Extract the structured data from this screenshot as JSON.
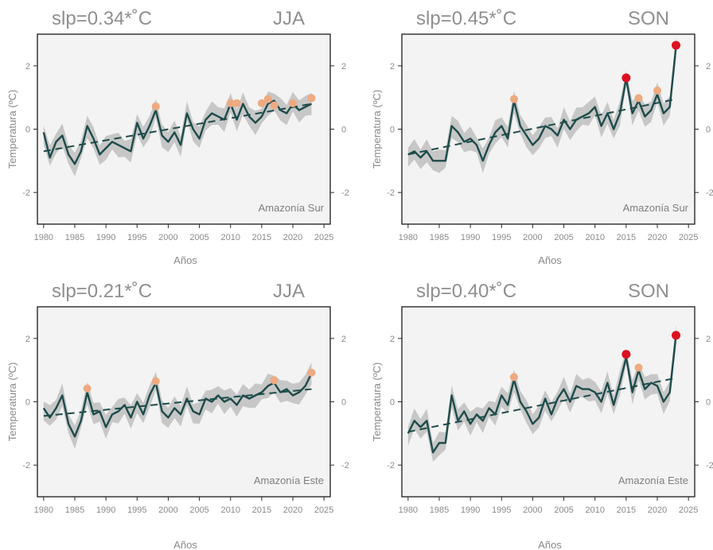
{
  "colors": {
    "line": "#1d4b4a",
    "band": "#c7c7c7",
    "trend": "#1d4b4a",
    "highlight_orange": "#eeaa80",
    "highlight_red": "#dd1020",
    "frame": "#2b2b2b",
    "background": "#f3f3f3"
  },
  "chart_data": [
    {
      "type": "line",
      "title": "slp=0.34*˚C",
      "season": "JJA",
      "region": "Amazonía Sur",
      "xlabel": "Años",
      "ylabel": "Temperatura (ºC)",
      "xlim": [
        1979,
        2026
      ],
      "ylim": [
        -3,
        3
      ],
      "xticks": [
        1980,
        1985,
        1990,
        1995,
        2000,
        2005,
        2010,
        2015,
        2020,
        2025
      ],
      "yticks": [
        -2,
        0,
        2
      ],
      "x": [
        1980,
        1981,
        1982,
        1983,
        1984,
        1985,
        1986,
        1987,
        1988,
        1989,
        1990,
        1991,
        1992,
        1993,
        1994,
        1995,
        1996,
        1997,
        1998,
        1999,
        2000,
        2001,
        2002,
        2003,
        2004,
        2005,
        2006,
        2007,
        2008,
        2009,
        2010,
        2011,
        2012,
        2013,
        2014,
        2015,
        2016,
        2017,
        2018,
        2019,
        2020,
        2021,
        2022,
        2023
      ],
      "series": [
        {
          "values": [
            -0.1,
            -0.9,
            -0.4,
            -0.2,
            -0.8,
            -1.1,
            -0.7,
            0.1,
            -0.3,
            -0.8,
            -0.6,
            -0.4,
            -0.5,
            -0.6,
            -0.7,
            0.2,
            -0.3,
            0.1,
            0.6,
            -0.2,
            -0.4,
            -0.1,
            -0.5,
            0.5,
            0.0,
            -0.3,
            0.3,
            0.5,
            0.4,
            0.3,
            0.8,
            0.3,
            0.8,
            0.4,
            0.2,
            0.4,
            0.8,
            0.9,
            0.6,
            0.5,
            0.8,
            0.6,
            0.7,
            0.8
          ]
        }
      ],
      "band_half_width": 0.3,
      "trend": {
        "start": [
          1980,
          -0.7
        ],
        "end": [
          2023,
          0.8
        ]
      },
      "highlights": [
        {
          "x": 1998,
          "y": 0.72,
          "color": "orange"
        },
        {
          "x": 2010,
          "y": 0.82,
          "color": "orange"
        },
        {
          "x": 2011,
          "y": 0.82,
          "color": "orange"
        },
        {
          "x": 2015,
          "y": 0.82,
          "color": "orange"
        },
        {
          "x": 2016,
          "y": 0.95,
          "color": "orange"
        },
        {
          "x": 2017,
          "y": 0.75,
          "color": "orange"
        },
        {
          "x": 2020,
          "y": 0.82,
          "color": "orange"
        },
        {
          "x": 2023,
          "y": 0.98,
          "color": "orange"
        }
      ]
    },
    {
      "type": "line",
      "title": "slp=0.45*˚C",
      "season": "SON",
      "region": "Amazonía Sur",
      "xlabel": "Años",
      "ylabel": "Temperatura (ºC)",
      "xlim": [
        1979,
        2026
      ],
      "ylim": [
        -3,
        3
      ],
      "xticks": [
        1980,
        1985,
        1990,
        1995,
        2000,
        2005,
        2010,
        2015,
        2020,
        2025
      ],
      "yticks": [
        -2,
        0,
        2
      ],
      "x": [
        1980,
        1981,
        1982,
        1983,
        1984,
        1985,
        1986,
        1987,
        1988,
        1989,
        1990,
        1991,
        1992,
        1993,
        1994,
        1995,
        1996,
        1997,
        1998,
        1999,
        2000,
        2001,
        2002,
        2003,
        2004,
        2005,
        2006,
        2007,
        2008,
        2009,
        2010,
        2011,
        2012,
        2013,
        2014,
        2015,
        2016,
        2017,
        2018,
        2019,
        2020,
        2021,
        2022,
        2023
      ],
      "series": [
        {
          "values": [
            -0.8,
            -0.7,
            -0.9,
            -0.7,
            -1.0,
            -1.0,
            -1.0,
            0.1,
            -0.1,
            -0.4,
            -0.3,
            -0.5,
            -1.0,
            -0.5,
            -0.1,
            0.1,
            -0.3,
            0.9,
            0.1,
            -0.2,
            -0.5,
            -0.3,
            0.1,
            0.0,
            -0.2,
            0.3,
            0.0,
            0.3,
            0.4,
            0.5,
            0.7,
            0.1,
            0.5,
            0.0,
            0.5,
            1.6,
            0.5,
            0.9,
            0.4,
            0.6,
            1.1,
            0.5,
            0.7,
            2.6
          ]
        }
      ],
      "band_half_width": 0.3,
      "trend": {
        "start": [
          1980,
          -0.8
        ],
        "end": [
          2023,
          0.95
        ]
      },
      "highlights": [
        {
          "x": 1997,
          "y": 0.95,
          "color": "orange"
        },
        {
          "x": 2017,
          "y": 0.98,
          "color": "orange"
        },
        {
          "x": 2020,
          "y": 1.22,
          "color": "orange"
        },
        {
          "x": 2015,
          "y": 1.62,
          "color": "red"
        },
        {
          "x": 2023,
          "y": 2.65,
          "color": "red"
        }
      ]
    },
    {
      "type": "line",
      "title": "slp=0.21*˚C",
      "season": "JJA",
      "region": "Amazonía Este",
      "xlabel": "Años",
      "ylabel": "Temperatura (ºC)",
      "xlim": [
        1979,
        2026
      ],
      "ylim": [
        -3,
        3
      ],
      "xticks": [
        1980,
        1985,
        1990,
        1995,
        2000,
        2005,
        2010,
        2015,
        2020,
        2025
      ],
      "yticks": [
        -2,
        0,
        2
      ],
      "x": [
        1980,
        1981,
        1982,
        1983,
        1984,
        1985,
        1986,
        1987,
        1988,
        1989,
        1990,
        1991,
        1992,
        1993,
        1994,
        1995,
        1996,
        1997,
        1998,
        1999,
        2000,
        2001,
        2002,
        2003,
        2004,
        2005,
        2006,
        2007,
        2008,
        2009,
        2010,
        2011,
        2012,
        2013,
        2014,
        2015,
        2016,
        2017,
        2018,
        2019,
        2020,
        2021,
        2022,
        2023
      ],
      "series": [
        {
          "values": [
            -0.2,
            -0.5,
            -0.2,
            0.2,
            -0.7,
            -1.1,
            -0.6,
            0.3,
            -0.4,
            -0.3,
            -0.8,
            -0.4,
            -0.3,
            -0.1,
            -0.5,
            0.0,
            -0.4,
            0.2,
            0.6,
            -0.3,
            -0.5,
            -0.2,
            -0.4,
            0.1,
            -0.3,
            -0.4,
            0.1,
            0.0,
            0.2,
            0.0,
            0.1,
            -0.1,
            0.2,
            0.1,
            0.2,
            0.3,
            0.5,
            0.6,
            0.3,
            0.4,
            0.2,
            0.3,
            0.5,
            0.9
          ]
        }
      ],
      "band_half_width": 0.3,
      "trend": {
        "start": [
          1980,
          -0.45
        ],
        "end": [
          2023,
          0.4
        ]
      },
      "highlights": [
        {
          "x": 1987,
          "y": 0.42,
          "color": "orange"
        },
        {
          "x": 1998,
          "y": 0.65,
          "color": "orange"
        },
        {
          "x": 2017,
          "y": 0.68,
          "color": "orange"
        },
        {
          "x": 2023,
          "y": 0.92,
          "color": "orange"
        }
      ]
    },
    {
      "type": "line",
      "title": "slp=0.40*˚C",
      "season": "SON",
      "region": "Amazonía Este",
      "xlabel": "Años",
      "ylabel": "Temperatura (ºC)",
      "xlim": [
        1979,
        2026
      ],
      "ylim": [
        -3,
        3
      ],
      "xticks": [
        1980,
        1985,
        1990,
        1995,
        2000,
        2005,
        2010,
        2015,
        2020,
        2025
      ],
      "yticks": [
        -2,
        0,
        2
      ],
      "x": [
        1980,
        1981,
        1982,
        1983,
        1984,
        1985,
        1986,
        1987,
        1988,
        1989,
        1990,
        1991,
        1992,
        1993,
        1994,
        1995,
        1996,
        1997,
        1998,
        1999,
        2000,
        2001,
        2002,
        2003,
        2004,
        2005,
        2006,
        2007,
        2008,
        2009,
        2010,
        2011,
        2012,
        2013,
        2014,
        2015,
        2016,
        2017,
        2018,
        2019,
        2020,
        2021,
        2022,
        2023
      ],
      "series": [
        {
          "values": [
            -1.0,
            -0.6,
            -0.8,
            -0.6,
            -1.6,
            -1.3,
            -1.3,
            0.2,
            -0.6,
            -0.3,
            -0.7,
            -0.4,
            -0.6,
            -0.2,
            -0.4,
            0.2,
            -0.1,
            0.7,
            0.0,
            -0.3,
            -0.7,
            -0.5,
            0.1,
            -0.4,
            0.1,
            0.4,
            0.0,
            0.5,
            0.4,
            0.4,
            0.3,
            0.0,
            0.6,
            -0.1,
            0.6,
            1.4,
            0.3,
            1.0,
            0.4,
            0.6,
            0.5,
            0.0,
            0.3,
            2.1
          ]
        }
      ],
      "band_half_width": 0.3,
      "trend": {
        "start": [
          1980,
          -0.95
        ],
        "end": [
          2023,
          0.75
        ]
      },
      "highlights": [
        {
          "x": 1997,
          "y": 0.78,
          "color": "orange"
        },
        {
          "x": 2017,
          "y": 1.08,
          "color": "orange"
        },
        {
          "x": 2015,
          "y": 1.5,
          "color": "red"
        },
        {
          "x": 2023,
          "y": 2.1,
          "color": "red"
        }
      ]
    }
  ]
}
